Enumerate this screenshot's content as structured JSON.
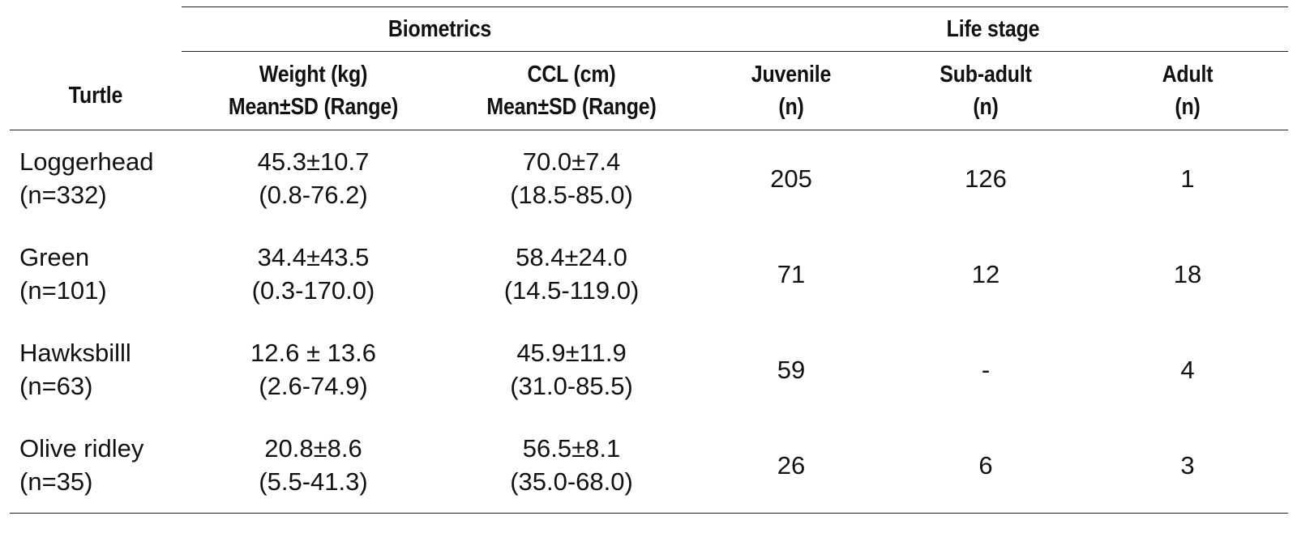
{
  "table": {
    "header": {
      "turtle": "Turtle",
      "biometrics": "Biometrics",
      "life_stage": "Life stage",
      "weight_line1": "Weight (kg)",
      "weight_line2": "Mean±SD (Range)",
      "ccl_line1": "CCL (cm)",
      "ccl_line2": "Mean±SD (Range)",
      "juvenile_line1": "Juvenile",
      "juvenile_line2": "(n)",
      "subadult_line1": "Sub-adult",
      "subadult_line2": "(n)",
      "adult_line1": "Adult",
      "adult_line2": "(n)"
    },
    "rows": [
      {
        "name": "Loggerhead",
        "n": "(n=332)",
        "weight_mean": "45.3±10.7",
        "weight_range": "(0.8-76.2)",
        "ccl_mean": "70.0±7.4",
        "ccl_range": "(18.5-85.0)",
        "juvenile": "205",
        "subadult": "126",
        "adult": "1"
      },
      {
        "name": "Green",
        "n": "(n=101)",
        "weight_mean": "34.4±43.5",
        "weight_range": "(0.3-170.0)",
        "ccl_mean": "58.4±24.0",
        "ccl_range": "(14.5-119.0)",
        "juvenile": "71",
        "subadult": "12",
        "adult": "18"
      },
      {
        "name": "Hawksbilll",
        "n": "(n=63)",
        "weight_mean": "12.6 ± 13.6",
        "weight_range": "(2.6-74.9)",
        "ccl_mean": "45.9±11.9",
        "ccl_range": "(31.0-85.5)",
        "juvenile": "59",
        "subadult": "-",
        "adult": "4"
      },
      {
        "name": "Olive ridley",
        "n": "(n=35)",
        "weight_mean": "20.8±8.6",
        "weight_range": "(5.5-41.3)",
        "ccl_mean": "56.5±8.1",
        "ccl_range": "(35.0-68.0)",
        "juvenile": "26",
        "subadult": "6",
        "adult": "3"
      }
    ]
  }
}
